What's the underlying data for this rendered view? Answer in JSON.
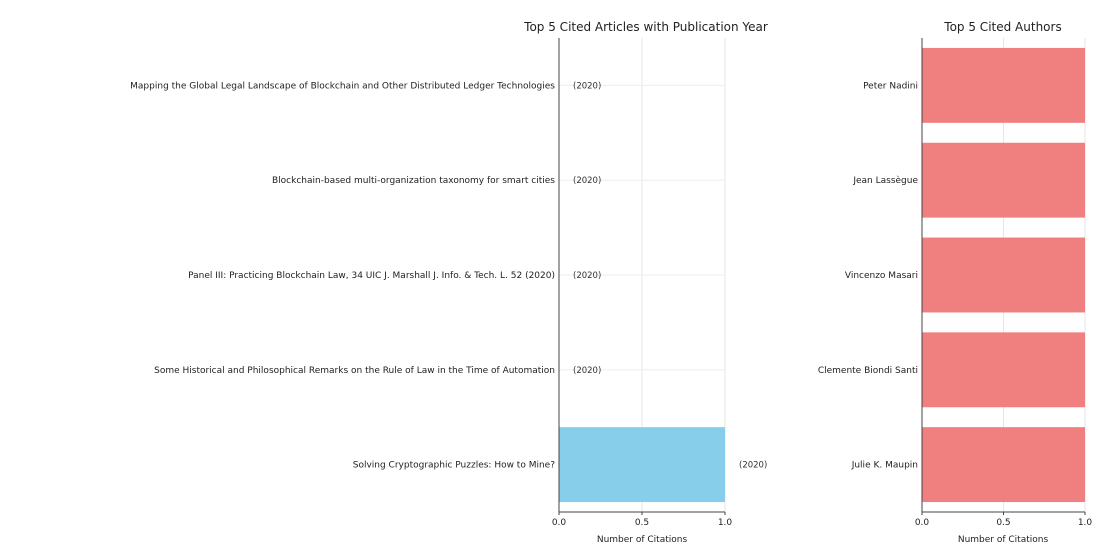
{
  "chart_data": [
    {
      "type": "bar",
      "orientation": "horizontal",
      "title": "Top 5 Cited Articles with Publication Year",
      "xlabel": "Number of Citations",
      "ylabel": "",
      "xlim": [
        0,
        1.0
      ],
      "xticks": [
        "0.0",
        "0.5",
        "1.0"
      ],
      "categories": [
        "Mapping the Global Legal Landscape of Blockchain and Other Distributed Ledger Technologies",
        "Blockchain-based multi-organization taxonomy for smart cities",
        "Panel III: Practicing Blockchain Law, 34 UIC J. Marshall J. Info. & Tech. L. 52 (2020)",
        "Some Historical and Philosophical Remarks on the Rule of Law in the Time of Automation",
        "Solving Cryptographic Puzzles: How to Mine?"
      ],
      "values": [
        0,
        0,
        0,
        0,
        1
      ],
      "annotations": [
        "(2020)",
        "(2020)",
        "(2020)",
        "(2020)",
        "(2020)"
      ],
      "color": "#87ceeb",
      "grid": true
    },
    {
      "type": "bar",
      "orientation": "horizontal",
      "title": "Top 5 Cited Authors",
      "xlabel": "Number of Citations",
      "ylabel": "",
      "xlim": [
        0,
        1.0
      ],
      "xticks": [
        "0.0",
        "0.5",
        "1.0"
      ],
      "categories": [
        "Peter Nadini",
        "Jean Lassègue",
        "Vincenzo Masari",
        "Clemente Biondi Santi",
        "Julie K. Maupin"
      ],
      "values": [
        1,
        1,
        1,
        1,
        1
      ],
      "color": "#f08080",
      "grid": true
    }
  ]
}
